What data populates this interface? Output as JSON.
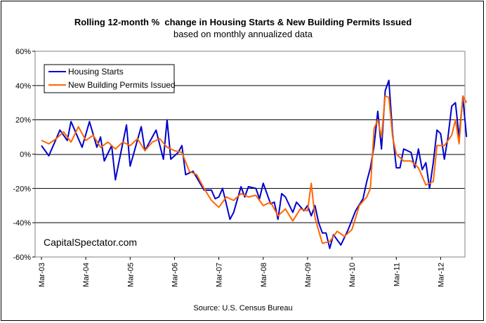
{
  "chart_data": {
    "type": "line",
    "title": "Rolling 12-month %  change in Housing Starts & New Building Permits Issued",
    "subtitle": "based on monthly annualized data",
    "source": "Source: U.S. Census Bureau",
    "watermark": "CapitalSpectator.com",
    "ylim": [
      -60,
      60
    ],
    "yticks": [
      "60%",
      "40%",
      "20%",
      "0%",
      "-20%",
      "-40%",
      "-60%"
    ],
    "ytick_values": [
      60,
      40,
      20,
      0,
      -20,
      -40,
      -60
    ],
    "xticks": [
      "Mar-03",
      "Mar-04",
      "Mar-05",
      "Mar-06",
      "Mar-07",
      "Mar-08",
      "Mar-09",
      "Mar-10",
      "Mar-11",
      "Mar-12"
    ],
    "n_points": 109,
    "grid": "horizontal at ±20% and ±40%",
    "legend_position": "top-left",
    "series": [
      {
        "name": "Housing Starts",
        "color": "#0000CC",
        "anchors": [
          [
            0,
            5
          ],
          [
            2,
            -1
          ],
          [
            5,
            14
          ],
          [
            7,
            8
          ],
          [
            8,
            19
          ],
          [
            11,
            4
          ],
          [
            13,
            19
          ],
          [
            15,
            4
          ],
          [
            16,
            10
          ],
          [
            17,
            -4
          ],
          [
            19,
            5
          ],
          [
            20,
            -15
          ],
          [
            23,
            17
          ],
          [
            24,
            -7
          ],
          [
            27,
            16
          ],
          [
            28,
            2
          ],
          [
            31,
            14
          ],
          [
            33,
            -3
          ],
          [
            34,
            20
          ],
          [
            35,
            -3
          ],
          [
            37,
            1
          ],
          [
            38,
            5
          ],
          [
            39,
            -12
          ],
          [
            41,
            -10
          ],
          [
            44,
            -21
          ],
          [
            46,
            -21
          ],
          [
            47,
            -26
          ],
          [
            48,
            -25
          ],
          [
            49,
            -20
          ],
          [
            51,
            -38
          ],
          [
            52,
            -34
          ],
          [
            54,
            -19
          ],
          [
            55,
            -25
          ],
          [
            56,
            -19
          ],
          [
            58,
            -20
          ],
          [
            59,
            -26
          ],
          [
            60,
            -17
          ],
          [
            62,
            -29
          ],
          [
            63,
            -28
          ],
          [
            64,
            -38
          ],
          [
            65,
            -23
          ],
          [
            66,
            -25
          ],
          [
            68,
            -34
          ],
          [
            69,
            -28
          ],
          [
            71,
            -33
          ],
          [
            72,
            -30
          ],
          [
            73,
            -36
          ],
          [
            74,
            -30
          ],
          [
            75,
            -40
          ],
          [
            76,
            -46
          ],
          [
            77,
            -46
          ],
          [
            78,
            -55
          ],
          [
            79,
            -47
          ],
          [
            81,
            -53
          ],
          [
            83,
            -44
          ],
          [
            85,
            -33
          ],
          [
            87,
            -26
          ],
          [
            88,
            -16
          ],
          [
            89,
            -8
          ],
          [
            90,
            5
          ],
          [
            91,
            25
          ],
          [
            92,
            3
          ],
          [
            93,
            37
          ],
          [
            94,
            43
          ],
          [
            95,
            12
          ],
          [
            96,
            -8
          ],
          [
            97,
            -8
          ],
          [
            98,
            3
          ],
          [
            100,
            1
          ],
          [
            101,
            -8
          ],
          [
            102,
            3
          ],
          [
            103,
            -9
          ],
          [
            104,
            -5
          ],
          [
            105,
            -20
          ],
          [
            106,
            -5
          ],
          [
            107,
            14
          ],
          [
            108,
            12
          ],
          [
            109,
            -3
          ],
          [
            110,
            10
          ],
          [
            111,
            28
          ],
          [
            112,
            30
          ],
          [
            113,
            10
          ],
          [
            114,
            33
          ],
          [
            115,
            10
          ]
        ]
      },
      {
        "name": "New Building Permits Issued",
        "color": "#FF6600",
        "anchors": [
          [
            0,
            8
          ],
          [
            2,
            6
          ],
          [
            4,
            9
          ],
          [
            6,
            13
          ],
          [
            8,
            7
          ],
          [
            10,
            16
          ],
          [
            12,
            8
          ],
          [
            14,
            11
          ],
          [
            16,
            4
          ],
          [
            18,
            7
          ],
          [
            20,
            3
          ],
          [
            22,
            7
          ],
          [
            24,
            5
          ],
          [
            26,
            9
          ],
          [
            28,
            2
          ],
          [
            30,
            7
          ],
          [
            32,
            9
          ],
          [
            34,
            4
          ],
          [
            36,
            2
          ],
          [
            38,
            1
          ],
          [
            40,
            -10
          ],
          [
            42,
            -12
          ],
          [
            44,
            -20
          ],
          [
            46,
            -27
          ],
          [
            48,
            -31
          ],
          [
            50,
            -25
          ],
          [
            52,
            -27
          ],
          [
            54,
            -23
          ],
          [
            56,
            -25
          ],
          [
            58,
            -24
          ],
          [
            60,
            -30
          ],
          [
            62,
            -28
          ],
          [
            64,
            -36
          ],
          [
            66,
            -32
          ],
          [
            68,
            -39
          ],
          [
            70,
            -32
          ],
          [
            72,
            -33
          ],
          [
            73,
            -17
          ],
          [
            74,
            -37
          ],
          [
            76,
            -52
          ],
          [
            78,
            -51
          ],
          [
            80,
            -45
          ],
          [
            82,
            -48
          ],
          [
            84,
            -44
          ],
          [
            86,
            -30
          ],
          [
            88,
            -25
          ],
          [
            89,
            -20
          ],
          [
            90,
            15
          ],
          [
            91,
            20
          ],
          [
            92,
            10
          ],
          [
            93,
            34
          ],
          [
            94,
            33
          ],
          [
            95,
            10
          ],
          [
            96,
            0
          ],
          [
            98,
            -4
          ],
          [
            100,
            -4
          ],
          [
            102,
            -8
          ],
          [
            104,
            -18
          ],
          [
            106,
            -16
          ],
          [
            107,
            5
          ],
          [
            109,
            5
          ],
          [
            111,
            11
          ],
          [
            112,
            20
          ],
          [
            113,
            6
          ],
          [
            114,
            34
          ],
          [
            115,
            30
          ]
        ]
      }
    ]
  }
}
